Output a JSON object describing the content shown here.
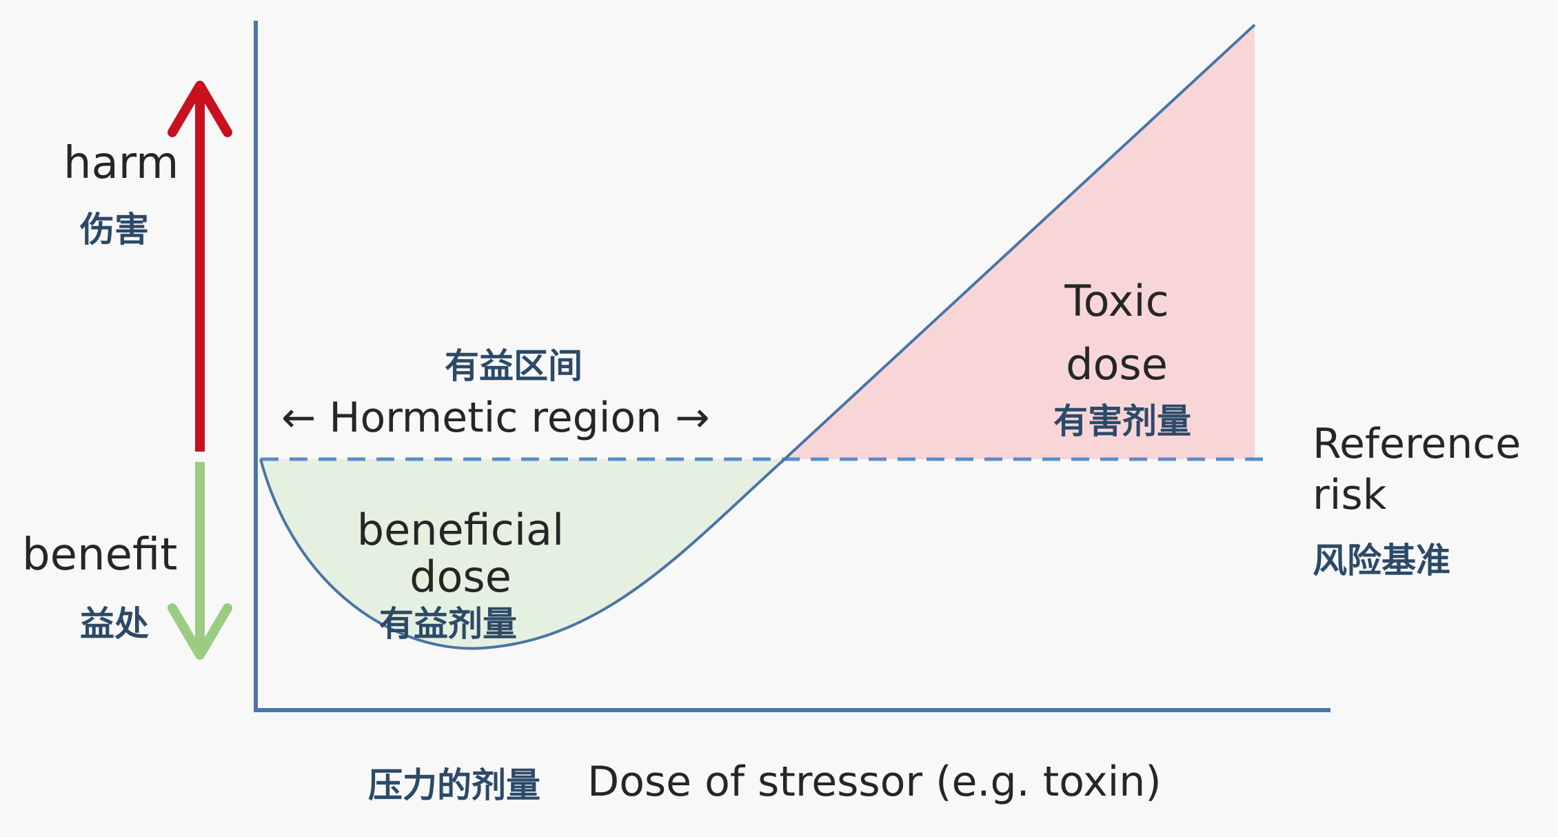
{
  "labels": {
    "harm_en": "harm",
    "harm_zh": "伤害",
    "benefit_en": "benefit",
    "benefit_zh": "益处",
    "hormetic_zh": "有益区间",
    "hormetic_en": "← Hormetic region →",
    "toxic_line1": "Toxic",
    "toxic_line2": "dose",
    "toxic_zh": "有害剂量",
    "beneficial_line1": "beneficial",
    "beneficial_line2": "dose",
    "beneficial_zh": "有益剂量",
    "reference_line1": "Reference",
    "reference_line2": "risk",
    "reference_zh": "风险基准",
    "x_axis_zh": "压力的剂量",
    "x_axis_en": "Dose of stressor (e.g. toxin)"
  },
  "colors": {
    "axis": "#4a74a8",
    "curve": "#4a74a8",
    "reference_line": "#5b8cc6",
    "harm_arrow": "#c8101e",
    "benefit_arrow": "#9ccc82",
    "toxic_fill": "#f8d6d8",
    "beneficial_fill": "#e6f0e0",
    "english_text": "#262626",
    "chinese_text": "#2c4a68"
  }
}
